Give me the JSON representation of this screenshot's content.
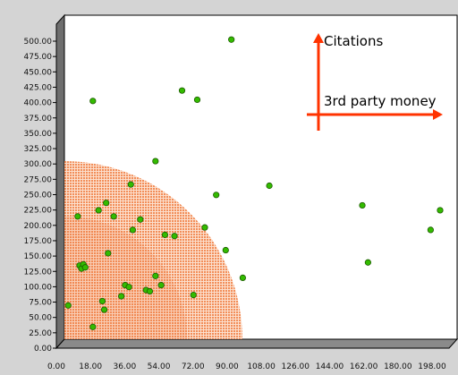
{
  "chart_data": {
    "type": "scatter",
    "title": "",
    "xlabel": "",
    "ylabel": "",
    "xlim": [
      0,
      198
    ],
    "ylim": [
      0,
      500
    ],
    "x_ticks": [
      "0.00",
      "18.00",
      "36.00",
      "54.00",
      "72.00",
      "90.00",
      "108.00",
      "126.00",
      "144.00",
      "162.00",
      "180.00",
      "198.00"
    ],
    "y_ticks": [
      "0.00",
      "25.00",
      "50.00",
      "75.00",
      "100.00",
      "125.00",
      "150.00",
      "175.00",
      "200.00",
      "225.00",
      "250.00",
      "275.00",
      "300.00",
      "325.00",
      "350.00",
      "375.00",
      "400.00",
      "425.00",
      "450.00",
      "475.00",
      "500.00"
    ],
    "grid": false,
    "annotations": {
      "vertical_arrow_label": "Citations",
      "horizontal_arrow_label": "3rd party money"
    },
    "highlight_region": {
      "shape": "quarter-circle",
      "center": [
        0,
        0
      ],
      "outer_radius_y": 290,
      "inner_radius_y": 200,
      "color": "#f07a3c"
    },
    "marker_color": "#33bb00",
    "series": [
      {
        "points": [
          [
            2,
            55
          ],
          [
            15,
            20
          ],
          [
            7,
            200
          ],
          [
            8,
            120
          ],
          [
            9,
            115
          ],
          [
            10,
            122
          ],
          [
            11,
            117
          ],
          [
            15,
            388
          ],
          [
            18,
            210
          ],
          [
            22,
            222
          ],
          [
            20,
            62
          ],
          [
            21,
            48
          ],
          [
            23,
            140
          ],
          [
            26,
            200
          ],
          [
            30,
            70
          ],
          [
            32,
            88
          ],
          [
            34,
            85
          ],
          [
            35,
            252
          ],
          [
            36,
            178
          ],
          [
            40,
            195
          ],
          [
            43,
            80
          ],
          [
            45,
            78
          ],
          [
            48,
            290
          ],
          [
            48,
            103
          ],
          [
            51,
            88
          ],
          [
            53,
            170
          ],
          [
            58,
            168
          ],
          [
            62,
            405
          ],
          [
            68,
            72
          ],
          [
            70,
            390
          ],
          [
            74,
            182
          ],
          [
            80,
            235
          ],
          [
            85,
            145
          ],
          [
            88,
            488
          ],
          [
            94,
            100
          ],
          [
            108,
            250
          ],
          [
            157,
            218
          ],
          [
            160,
            125
          ],
          [
            193,
            178
          ],
          [
            198,
            210
          ]
        ]
      }
    ]
  }
}
